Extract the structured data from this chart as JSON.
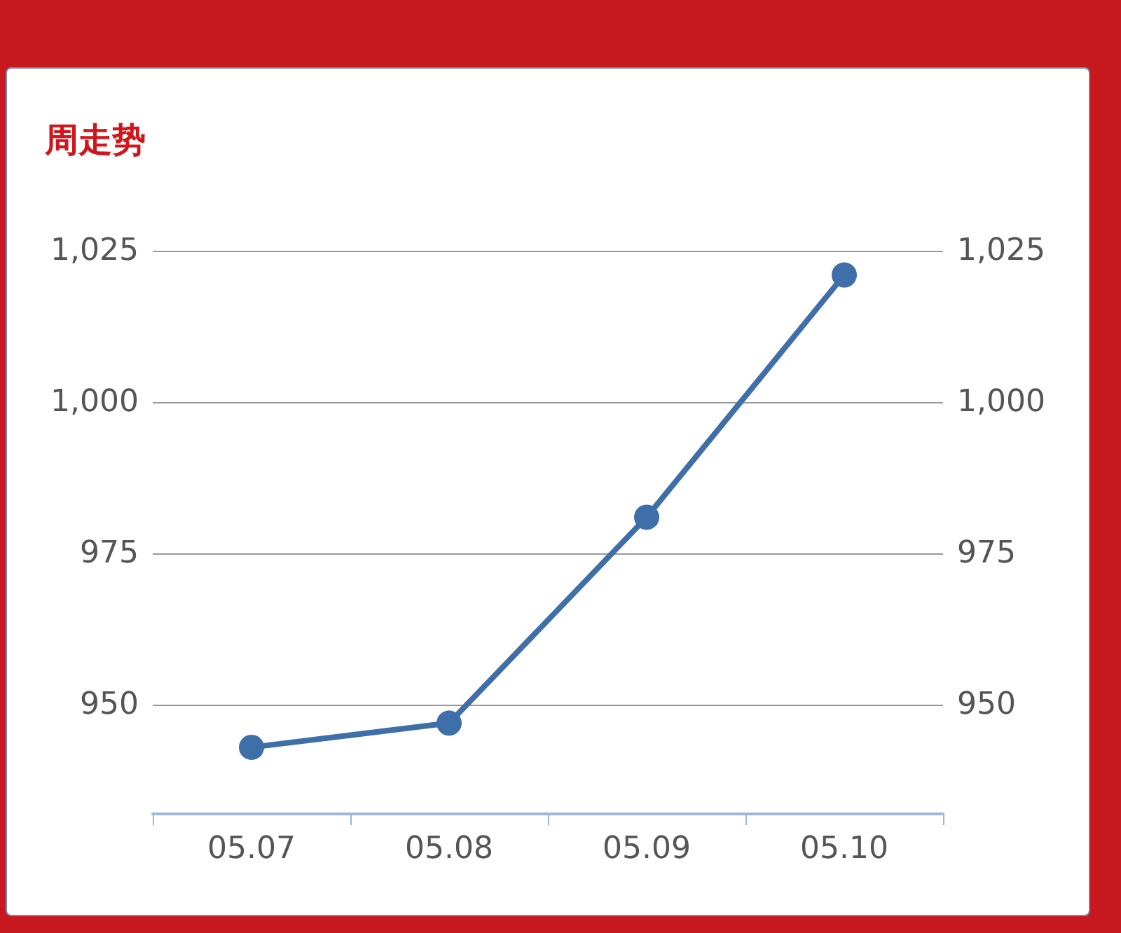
{
  "chart_data": {
    "type": "line",
    "title": "周走势",
    "categories": [
      "05.07",
      "05.08",
      "05.09",
      "05.10"
    ],
    "series": [
      {
        "color": "#3f6fa8",
        "values": [
          943,
          947,
          981,
          1021
        ]
      }
    ],
    "ylim": [
      932,
      1025
    ],
    "yticks": [
      950,
      975,
      {
        "value": 1000,
        "label": "1,000"
      },
      {
        "value": 1025,
        "label": "1,025"
      }
    ],
    "y2lim": [
      932,
      1025
    ],
    "y2ticks": [
      950,
      975,
      {
        "value": 1000,
        "label": "1,000"
      },
      {
        "value": 1025,
        "label": "1,025"
      }
    ],
    "grid": "y",
    "marker": "circle",
    "line_style": "solid"
  }
}
